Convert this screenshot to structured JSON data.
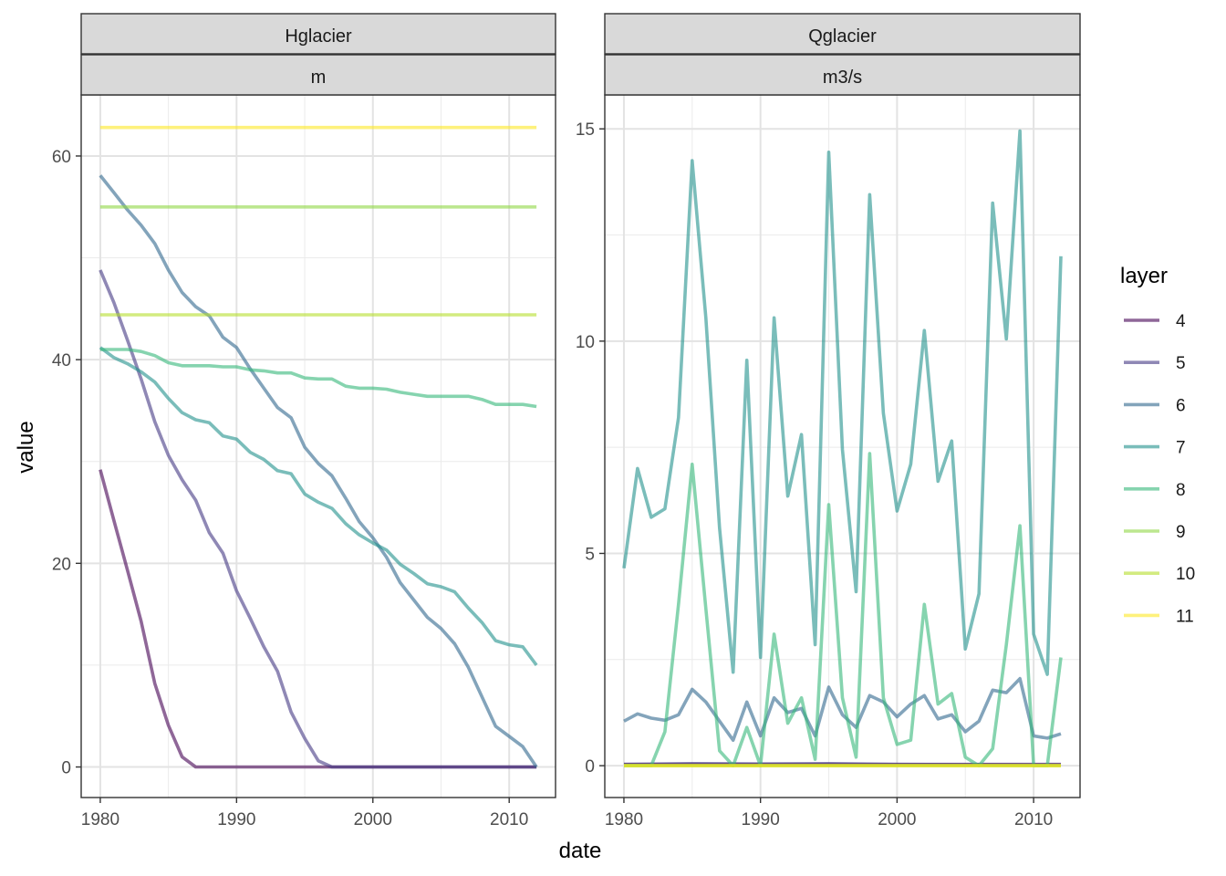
{
  "chart_data": {
    "type": "line",
    "x_label": "date",
    "y_label": "value",
    "legend": {
      "title": "layer",
      "position": "right",
      "items": [
        {
          "label": "4",
          "color": "#440154"
        },
        {
          "label": "5",
          "color": "#443983"
        },
        {
          "label": "6",
          "color": "#31688e"
        },
        {
          "label": "7",
          "color": "#21918c"
        },
        {
          "label": "8",
          "color": "#35b779"
        },
        {
          "label": "9",
          "color": "#8fd744"
        },
        {
          "label": "10",
          "color": "#b5de2b"
        },
        {
          "label": "11",
          "color": "#fde725"
        }
      ]
    },
    "x_ticks": [
      "1980",
      "1990",
      "2000",
      "2010"
    ],
    "x_tick_values": [
      1980,
      1990,
      2000,
      2010
    ],
    "x_range": [
      1978.6,
      2013.4
    ],
    "panels": [
      {
        "strip_top": "Hglacier",
        "strip_bottom": "m",
        "y_range": [
          -3,
          66
        ],
        "y_ticks": [
          "0",
          "20",
          "40",
          "60"
        ],
        "y_tick_values": [
          0,
          20,
          40,
          60
        ],
        "series": [
          {
            "layer": "4",
            "x": [
              1980,
              1981,
              1982,
              1983,
              1984,
              1985,
              1986,
              1987,
              1988,
              1989,
              2012
            ],
            "y": [
              29.2,
              24.2,
              19.3,
              14.3,
              8.2,
              4.1,
              1.0,
              0.0,
              0.0,
              0.0,
              0.0
            ]
          },
          {
            "layer": "5",
            "x": [
              1980,
              1981,
              1982,
              1983,
              1984,
              1985,
              1986,
              1987,
              1988,
              1989,
              1990,
              1991,
              1992,
              1993,
              1994,
              1995,
              1996,
              1997,
              1998,
              2012
            ],
            "y": [
              48.8,
              45.6,
              41.9,
              38.1,
              33.9,
              30.6,
              28.2,
              26.2,
              23.0,
              21.0,
              17.3,
              14.6,
              11.8,
              9.4,
              5.4,
              2.8,
              0.6,
              0.0,
              0.0,
              0.0
            ]
          },
          {
            "layer": "6",
            "x": [
              1980,
              1981,
              1982,
              1983,
              1984,
              1985,
              1986,
              1987,
              1988,
              1989,
              1990,
              1991,
              1992,
              1993,
              1994,
              1995,
              1996,
              1997,
              1998,
              1999,
              2000,
              2001,
              2002,
              2003,
              2004,
              2005,
              2006,
              2007,
              2008,
              2009,
              2010,
              2011,
              2012
            ],
            "y": [
              58.1,
              56.4,
              54.7,
              53.2,
              51.4,
              48.8,
              46.6,
              45.2,
              44.3,
              42.2,
              41.2,
              39.1,
              37.2,
              35.3,
              34.3,
              31.4,
              29.8,
              28.6,
              26.4,
              24.1,
              22.5,
              20.6,
              18.1,
              16.4,
              14.7,
              13.6,
              12.1,
              9.8,
              6.9,
              4.0,
              3.0,
              2.0,
              0.0
            ]
          },
          {
            "layer": "7",
            "x": [
              1980,
              1981,
              1982,
              1983,
              1984,
              1985,
              1986,
              1987,
              1988,
              1989,
              1990,
              1991,
              1992,
              1993,
              1994,
              1995,
              1996,
              1997,
              1998,
              1999,
              2000,
              2001,
              2002,
              2003,
              2004,
              2005,
              2006,
              2007,
              2008,
              2009,
              2010,
              2011,
              2012
            ],
            "y": [
              41.2,
              40.2,
              39.6,
              38.8,
              37.8,
              36.2,
              34.8,
              34.1,
              33.8,
              32.5,
              32.2,
              30.9,
              30.2,
              29.1,
              28.8,
              26.8,
              26.0,
              25.4,
              23.9,
              22.8,
              22.0,
              21.3,
              19.9,
              19.0,
              18.0,
              17.7,
              17.2,
              15.6,
              14.2,
              12.4,
              12.0,
              11.8,
              10.0
            ]
          },
          {
            "layer": "8",
            "x": [
              1980,
              1981,
              1982,
              1983,
              1984,
              1985,
              1986,
              1987,
              1988,
              1989,
              1990,
              1991,
              1992,
              1993,
              1994,
              1995,
              1996,
              1997,
              1998,
              1999,
              2000,
              2001,
              2002,
              2003,
              2004,
              2005,
              2006,
              2007,
              2008,
              2009,
              2010,
              2011,
              2012
            ],
            "y": [
              41.0,
              41.0,
              41.0,
              40.8,
              40.4,
              39.7,
              39.4,
              39.4,
              39.4,
              39.3,
              39.3,
              39.0,
              38.9,
              38.7,
              38.7,
              38.2,
              38.1,
              38.1,
              37.4,
              37.2,
              37.2,
              37.1,
              36.8,
              36.6,
              36.4,
              36.4,
              36.4,
              36.4,
              36.1,
              35.6,
              35.6,
              35.6,
              35.4
            ]
          },
          {
            "layer": "9",
            "x": [
              1980,
              2012
            ],
            "y": [
              55.0,
              55.0
            ]
          },
          {
            "layer": "10",
            "x": [
              1980,
              2012
            ],
            "y": [
              44.4,
              44.4
            ]
          },
          {
            "layer": "11",
            "x": [
              1980,
              2012
            ],
            "y": [
              62.8,
              62.8
            ]
          }
        ]
      },
      {
        "strip_top": "Qglacier",
        "strip_bottom": "m3/s",
        "y_range": [
          -0.75,
          15.8
        ],
        "y_ticks": [
          "0",
          "5",
          "10",
          "15"
        ],
        "y_tick_values": [
          0,
          5,
          10,
          15
        ],
        "series": [
          {
            "layer": "4",
            "x": [
              1980,
              2012
            ],
            "y": [
              0.03,
              0.03
            ]
          },
          {
            "layer": "5",
            "x": [
              1980,
              1985,
              1990,
              1995,
              2000,
              2012
            ],
            "y": [
              0.03,
              0.05,
              0.04,
              0.05,
              0.03,
              0.02
            ]
          },
          {
            "layer": "6",
            "x": [
              1980,
              1981,
              1982,
              1983,
              1984,
              1985,
              1986,
              1987,
              1988,
              1989,
              1990,
              1991,
              1992,
              1993,
              1994,
              1995,
              1996,
              1997,
              1998,
              1999,
              2000,
              2001,
              2002,
              2003,
              2004,
              2005,
              2006,
              2007,
              2008,
              2009,
              2010,
              2011,
              2012
            ],
            "y": [
              1.05,
              1.22,
              1.12,
              1.07,
              1.2,
              1.8,
              1.5,
              1.05,
              0.6,
              1.5,
              0.7,
              1.6,
              1.25,
              1.35,
              0.7,
              1.85,
              1.2,
              0.9,
              1.65,
              1.5,
              1.15,
              1.45,
              1.65,
              1.1,
              1.2,
              0.8,
              1.05,
              1.78,
              1.72,
              2.05,
              0.7,
              0.65,
              0.75
            ]
          },
          {
            "layer": "7",
            "x": [
              1980,
              1981,
              1982,
              1983,
              1984,
              1985,
              1986,
              1987,
              1988,
              1989,
              1990,
              1991,
              1992,
              1993,
              1994,
              1995,
              1996,
              1997,
              1998,
              1999,
              2000,
              2001,
              2002,
              2003,
              2004,
              2005,
              2006,
              2007,
              2008,
              2009,
              2010,
              2011,
              2012
            ],
            "y": [
              4.65,
              7.0,
              5.85,
              6.05,
              8.2,
              14.25,
              10.55,
              5.6,
              2.2,
              9.55,
              2.55,
              10.55,
              6.35,
              7.8,
              2.85,
              14.45,
              7.45,
              4.1,
              13.45,
              8.3,
              6.0,
              7.1,
              10.25,
              6.7,
              7.65,
              2.75,
              4.05,
              13.25,
              10.05,
              14.95,
              3.1,
              2.15,
              12.0
            ]
          },
          {
            "layer": "8",
            "x": [
              1980,
              1981,
              1982,
              1983,
              1984,
              1985,
              1986,
              1987,
              1988,
              1989,
              1990,
              1991,
              1992,
              1993,
              1994,
              1995,
              1996,
              1997,
              1998,
              1999,
              2000,
              2001,
              2002,
              2003,
              2004,
              2005,
              2006,
              2007,
              2008,
              2009,
              2010,
              2011,
              2012
            ],
            "y": [
              0.0,
              0.0,
              0.0,
              0.8,
              3.8,
              7.1,
              3.7,
              0.35,
              0.0,
              0.9,
              0.0,
              3.1,
              1.0,
              1.6,
              0.15,
              6.15,
              1.6,
              0.2,
              7.35,
              1.6,
              0.5,
              0.6,
              3.8,
              1.45,
              1.7,
              0.2,
              0.0,
              0.4,
              2.85,
              5.65,
              0.0,
              0.0,
              2.55
            ]
          },
          {
            "layer": "9",
            "x": [
              1980,
              2012
            ],
            "y": [
              0.0,
              0.0
            ]
          },
          {
            "layer": "10",
            "x": [
              1980,
              2012
            ],
            "y": [
              0.0,
              0.0
            ]
          },
          {
            "layer": "11",
            "x": [
              1980,
              2012
            ],
            "y": [
              0.0,
              0.0
            ]
          }
        ]
      }
    ]
  }
}
